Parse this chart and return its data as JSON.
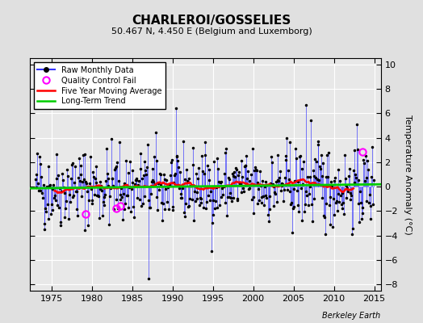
{
  "title": "CHARLEROI/GOSSELIES",
  "subtitle": "50.467 N, 4.450 E (Belgium and Luxemborg)",
  "ylabel": "Temperature Anomaly (°C)",
  "ylim": [
    -8.5,
    10.5
  ],
  "xlim": [
    1972.3,
    2015.8
  ],
  "yticks": [
    -8,
    -6,
    -4,
    -2,
    0,
    2,
    4,
    6,
    8,
    10
  ],
  "xticks": [
    1975,
    1980,
    1985,
    1990,
    1995,
    2000,
    2005,
    2010,
    2015
  ],
  "bg_color": "#e0e0e0",
  "plot_bg_color": "#e8e8e8",
  "grid_color": "white",
  "line_color": "#3333ff",
  "dot_color": "black",
  "moving_avg_color": "red",
  "trend_color": "#00cc00",
  "qc_color": "magenta",
  "seed": 42,
  "start_year": 1973,
  "end_year": 2014,
  "qc_fail_points": [
    [
      1979.25,
      -2.25
    ],
    [
      1983.08,
      -1.75
    ],
    [
      1983.5,
      -1.55
    ],
    [
      2013.5,
      2.85
    ]
  ],
  "watermark": "Berkeley Earth",
  "extreme_cold_idx": 168,
  "extreme_cold_val": -7.5,
  "extreme_warm_idx": 403,
  "extreme_warm_val": 6.7,
  "extreme_warm2_idx": 410,
  "extreme_warm2_val": 5.4
}
